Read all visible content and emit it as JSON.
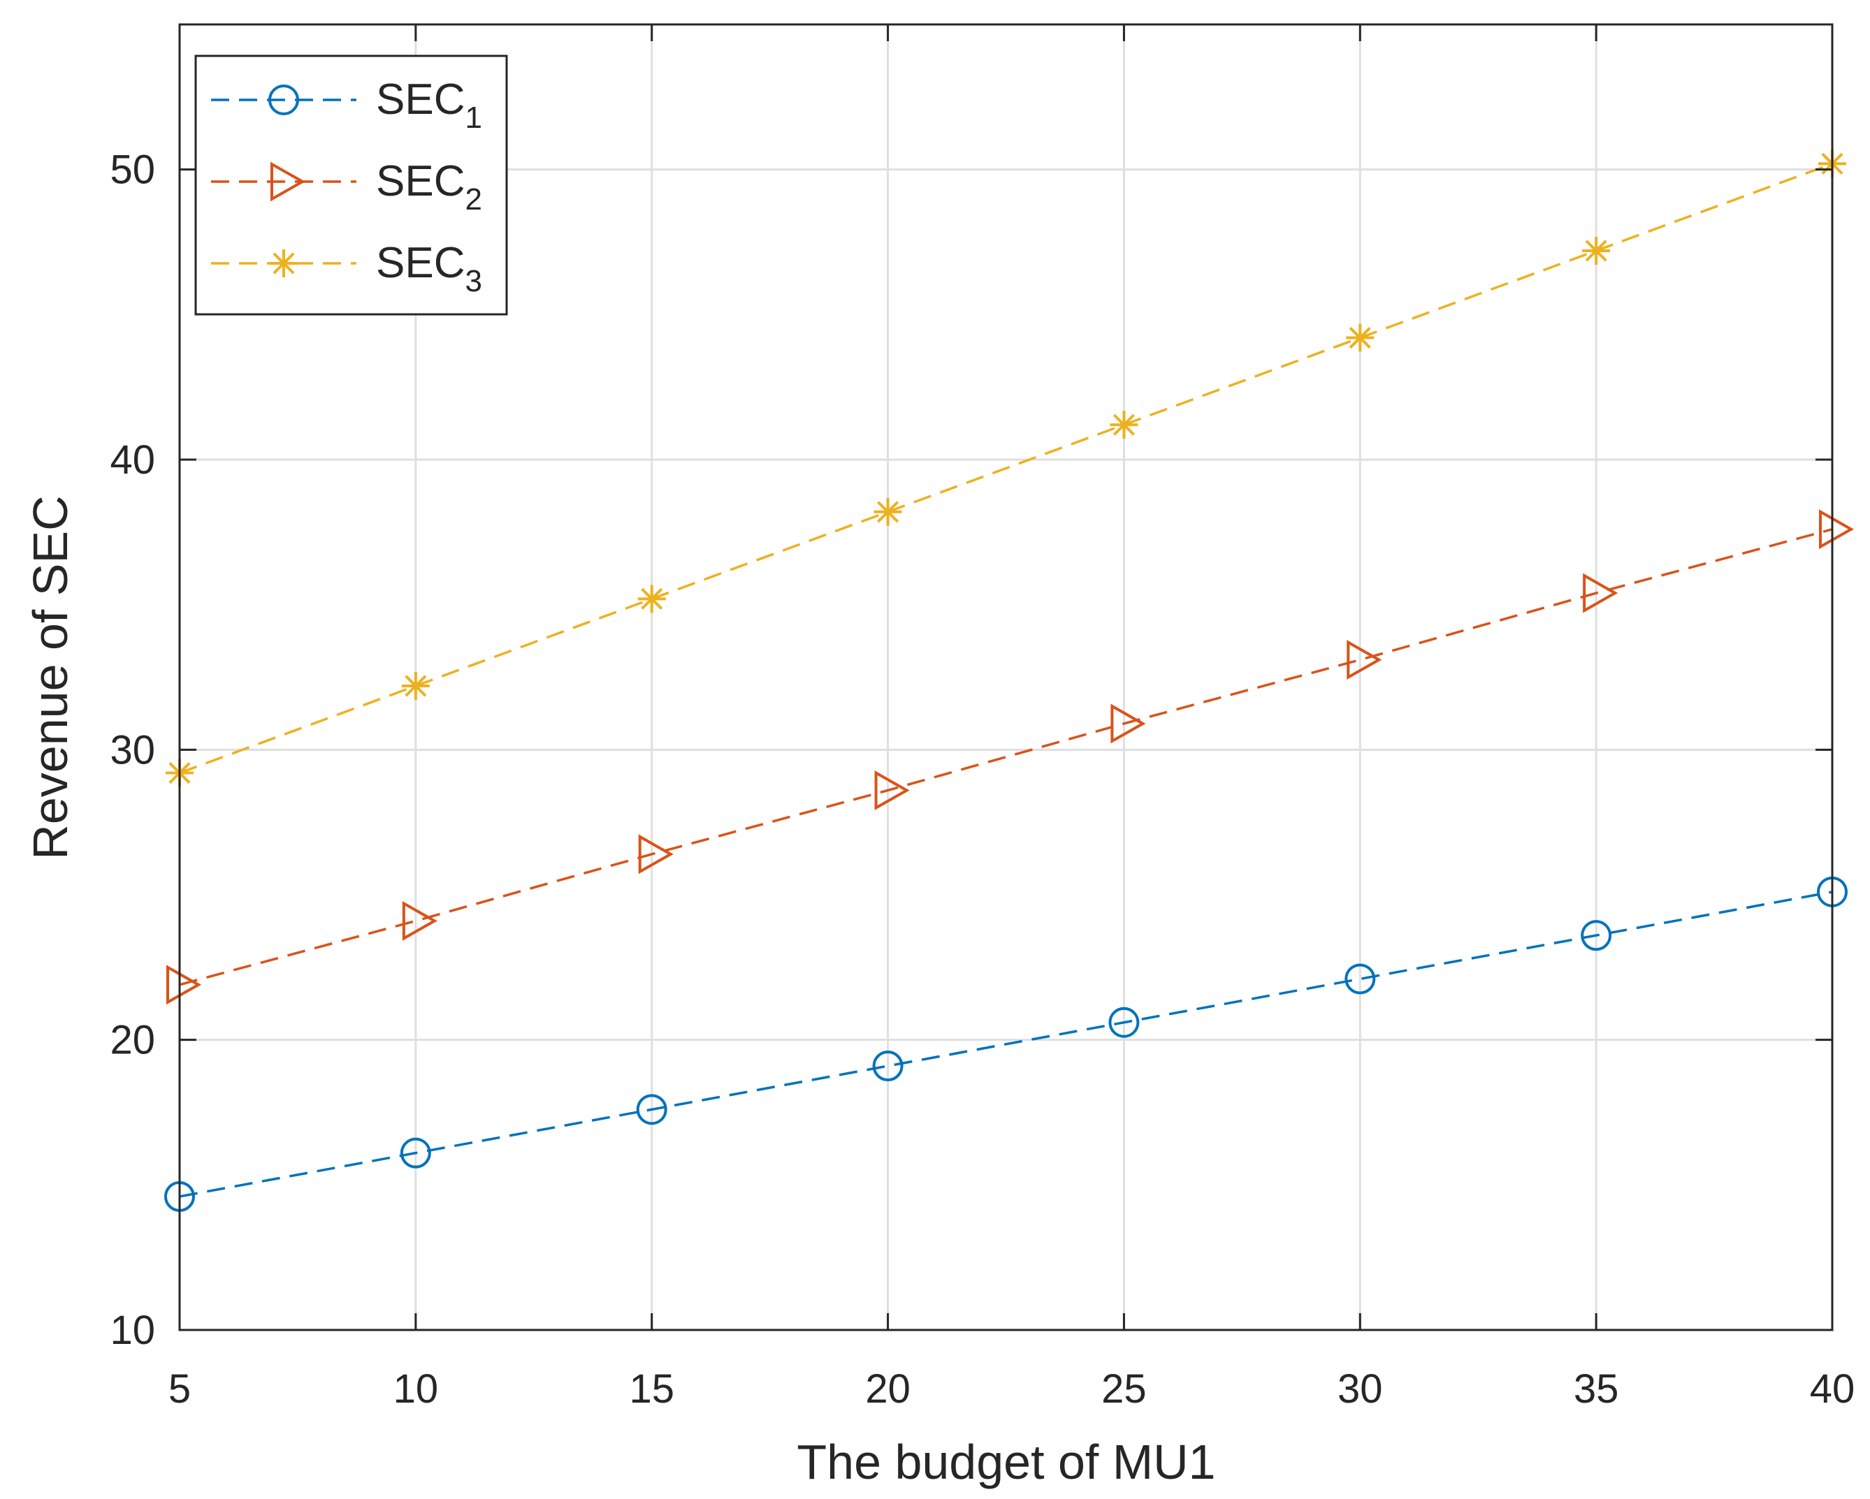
{
  "chart_data": {
    "type": "line",
    "title": "",
    "xlabel": "The budget of MU1",
    "ylabel": "Revenue of SEC",
    "xlim": [
      5,
      40
    ],
    "ylim": [
      10,
      55
    ],
    "grid": true,
    "legend_position": "top-left",
    "x": [
      5,
      10,
      15,
      20,
      25,
      30,
      35,
      40
    ],
    "x_ticks": [
      5,
      10,
      15,
      20,
      25,
      30,
      35,
      40
    ],
    "y_ticks": [
      10,
      20,
      30,
      40,
      50
    ],
    "series": [
      {
        "name": "SEC",
        "subscript": "1",
        "color": "#0072BD",
        "marker": "circle",
        "values": [
          14.6,
          16.1,
          17.6,
          19.1,
          20.6,
          22.1,
          23.6,
          25.1
        ]
      },
      {
        "name": "SEC",
        "subscript": "2",
        "color": "#D95319",
        "marker": "triangle-right",
        "values": [
          21.9,
          24.1,
          26.4,
          28.6,
          30.9,
          33.1,
          35.4,
          37.6
        ]
      },
      {
        "name": "SEC",
        "subscript": "3",
        "color": "#EDB120",
        "marker": "asterisk",
        "values": [
          29.2,
          32.2,
          35.2,
          38.2,
          41.2,
          44.2,
          47.2,
          50.2
        ]
      }
    ]
  }
}
